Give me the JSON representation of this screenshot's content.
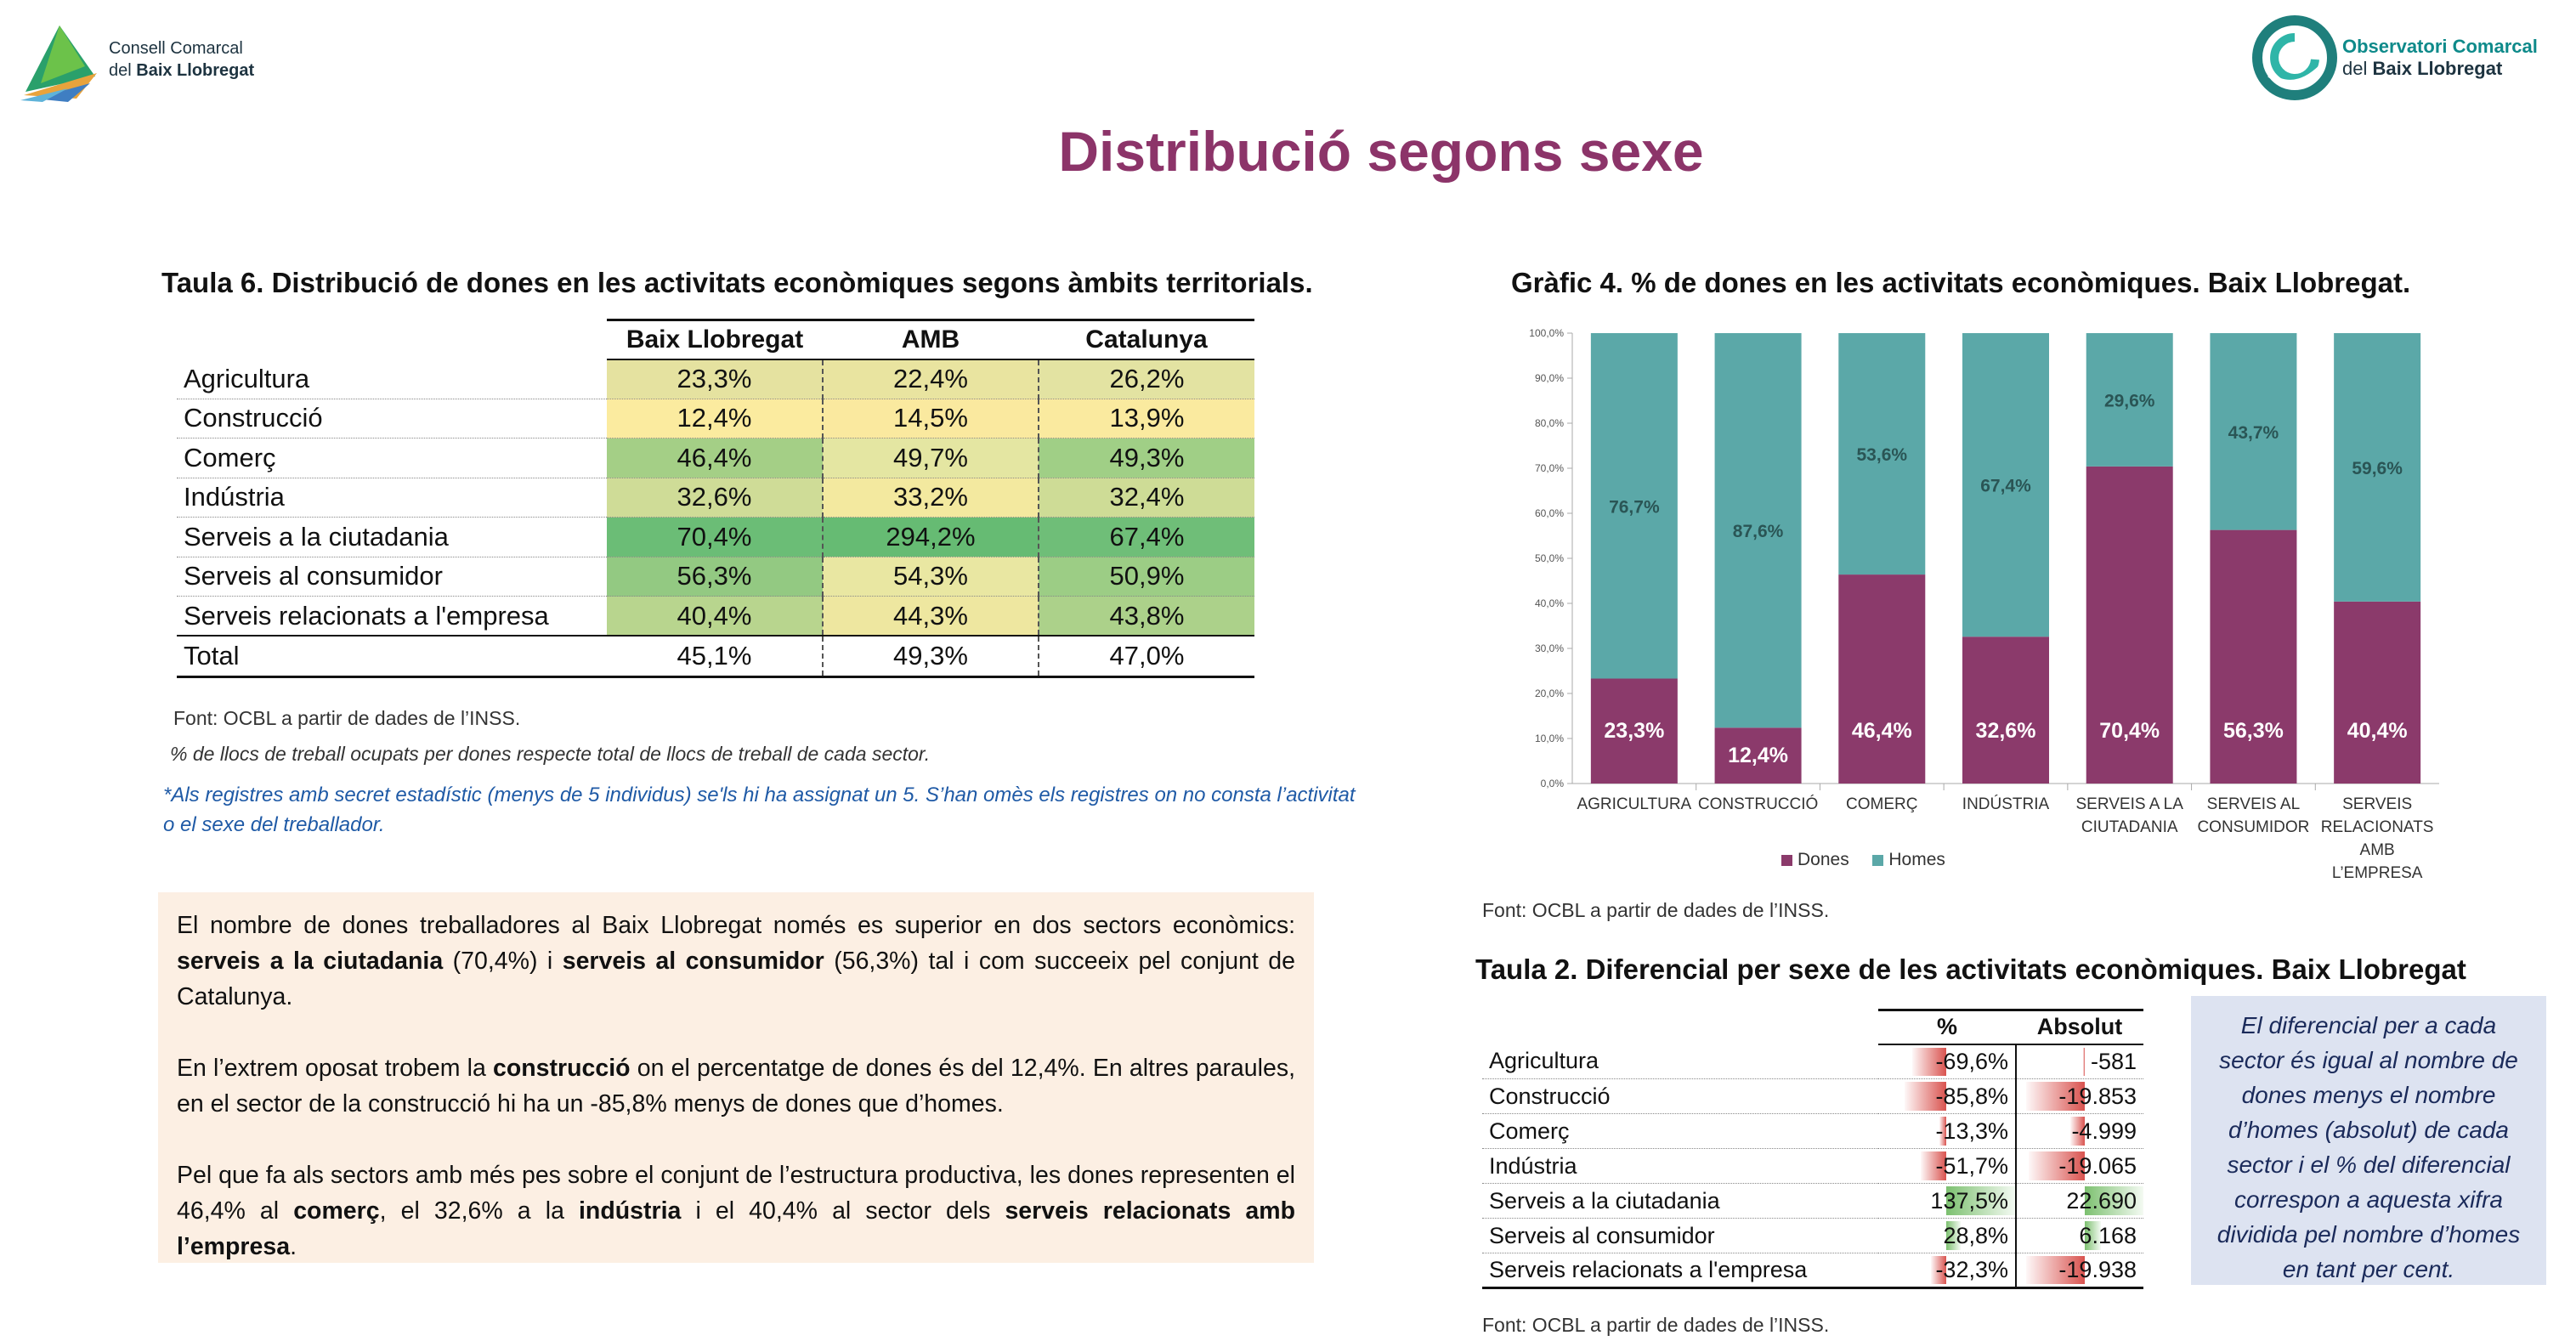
{
  "header": {
    "left_logo": {
      "line1": "Consell Comarcal",
      "line2_prefix": "del ",
      "line2_bold": "Baix Llobregat"
    },
    "right_logo": {
      "line1": "Observatori Comarcal",
      "line2_prefix": "del ",
      "line2_bold": "Baix Llobregat"
    },
    "title": "Distribució segons sexe"
  },
  "table6": {
    "title": "Taula 6. Distribució de dones en les activitats econòmiques segons àmbits territorials.",
    "columns": [
      "Baix Llobregat",
      "AMB",
      "Catalunya"
    ],
    "rows": [
      {
        "label": "Agricultura",
        "values": [
          "23,3%",
          "22,4%",
          "26,2%"
        ],
        "colors": [
          "#e5e2a0",
          "#e9e4a0",
          "#e3e3a2"
        ]
      },
      {
        "label": "Construcció",
        "values": [
          "12,4%",
          "14,5%",
          "13,9%"
        ],
        "colors": [
          "#fbeb9f",
          "#fae99f",
          "#faea9f"
        ]
      },
      {
        "label": "Comerç",
        "values": [
          "46,4%",
          "49,7%",
          "49,3%"
        ],
        "colors": [
          "#a4cf86",
          "#e4e6a2",
          "#a0cf86"
        ]
      },
      {
        "label": "Indústria",
        "values": [
          "32,6%",
          "33,2%",
          "32,4%"
        ],
        "colors": [
          "#cfdc97",
          "#f3e99f",
          "#cedc96"
        ]
      },
      {
        "label": "Serveis a la ciutadania",
        "values": [
          "70,4%",
          "294,2%",
          "67,4%"
        ],
        "colors": [
          "#6bbd76",
          "#66bb73",
          "#6fbe78"
        ]
      },
      {
        "label": "Serveis al consumidor",
        "values": [
          "56,3%",
          "54,3%",
          "50,9%"
        ],
        "colors": [
          "#93c982",
          "#e9e7a2",
          "#9ccd85"
        ]
      },
      {
        "label": "Serveis relacionats a l'empresa",
        "values": [
          "40,4%",
          "44,3%",
          "43,8%"
        ],
        "colors": [
          "#b8d58e",
          "#eee7a0",
          "#acd18a"
        ]
      }
    ],
    "total": {
      "label": "Total",
      "values": [
        "45,1%",
        "49,3%",
        "47,0%"
      ]
    },
    "source": "Font: OCBL a partir de dades de l’INSS.",
    "note": "% de llocs de treball ocupats per  dones respecte total de llocs de treball de cada sector.",
    "footnote": "*Als registres amb secret estadístic (menys de 5 individus) se'ls hi ha assignat un 5. S’han omès els registres on no consta l’activitat o el sexe del treballador."
  },
  "text_box": {
    "p1": {
      "a": "El nombre de dones treballadores al Baix Llobregat només es superior en dos sectors econòmics: ",
      "b1": "serveis a la ciutadania",
      "c": " (70,4%) i ",
      "b2": "serveis al consumidor",
      "d": " (56,3%) tal i com succeeix pel conjunt de Catalunya."
    },
    "p2": {
      "a": "En l’extrem oposat trobem la ",
      "b1": "construcció",
      "c": " on el percentatge de dones és del 12,4%. En altres paraules, en el sector de la construcció hi ha un -85,8% menys de dones que d’homes."
    },
    "p3": {
      "a": "Pel que fa als sectors amb més pes sobre el conjunt de l’estructura productiva, les dones representen el 46,4% al ",
      "b1": "comerç",
      "c": ", el 32,6% a la ",
      "b2": "indústria",
      "d": " i el 40,4% al sector dels ",
      "b3": "serveis relacionats amb l’empresa",
      "e": "."
    }
  },
  "chart4": {
    "title": "Gràfic 4. % de dones en les activitats econòmiques. Baix Llobregat.",
    "source": "Font: OCBL a partir de dades de l’INSS.",
    "legend": [
      "Dones",
      "Homes"
    ]
  },
  "chart_data": {
    "type": "bar",
    "stacked": true,
    "categories": [
      [
        "AGRICULTURA"
      ],
      [
        "CONSTRUCCIÓ"
      ],
      [
        "COMERÇ"
      ],
      [
        "INDÚSTRIA"
      ],
      [
        "SERVEIS A LA",
        "CIUTADANIA"
      ],
      [
        "SERVEIS AL",
        "CONSUMIDOR"
      ],
      [
        "SERVEIS",
        "RELACIONATS",
        "AMB",
        "L’EMPRESA"
      ]
    ],
    "series": [
      {
        "name": "Dones",
        "color": "#8b3a6b",
        "values": [
          23.3,
          12.4,
          46.4,
          32.6,
          70.4,
          56.3,
          40.4
        ],
        "labels": [
          "23,3%",
          "12,4%",
          "46,4%",
          "32,6%",
          "70,4%",
          "56,3%",
          "40,4%"
        ]
      },
      {
        "name": "Homes",
        "color": "#5ba8a8",
        "values": [
          76.7,
          87.6,
          53.6,
          67.4,
          29.6,
          43.7,
          59.6
        ],
        "labels": [
          "76,7%",
          "87,6%",
          "53,6%",
          "67,4%",
          "29,6%",
          "43,7%",
          "59,6%"
        ]
      }
    ],
    "yticks": [
      "0,0%",
      "10,0%",
      "20,0%",
      "30,0%",
      "40,0%",
      "50,0%",
      "60,0%",
      "70,0%",
      "80,0%",
      "90,0%",
      "100,0%"
    ],
    "ylim": [
      0,
      100
    ],
    "legend_position": "bottom"
  },
  "table2": {
    "title": "Taula 2. Diferencial per sexe de les activitats econòmiques. Baix Llobregat",
    "columns": [
      "%",
      "Absolut"
    ],
    "rows": [
      {
        "label": "Agricultura",
        "pct": "-69,6%",
        "abs": "-581",
        "pct_v": -69.6,
        "abs_v": -581
      },
      {
        "label": "Construcció",
        "pct": "-85,8%",
        "abs": "-19.853",
        "pct_v": -85.8,
        "abs_v": -19853
      },
      {
        "label": "Comerç",
        "pct": "-13,3%",
        "abs": "-4.999",
        "pct_v": -13.3,
        "abs_v": -4999
      },
      {
        "label": "Indústria",
        "pct": "-51,7%",
        "abs": "-19.065",
        "pct_v": -51.7,
        "abs_v": -19065
      },
      {
        "label": "Serveis a la ciutadania",
        "pct": "137,5%",
        "abs": "22.690",
        "pct_v": 137.5,
        "abs_v": 22690
      },
      {
        "label": "Serveis al consumidor",
        "pct": "28,8%",
        "abs": "6.168",
        "pct_v": 28.8,
        "abs_v": 6168
      },
      {
        "label": "Serveis relacionats a l'empresa",
        "pct": "-32,3%",
        "abs": "-19.938",
        "pct_v": -32.3,
        "abs_v": -19938
      }
    ],
    "source": "Font: OCBL a partir de dades de l’INSS."
  },
  "info_box": "El diferencial per a cada sector és igual al nombre de dones menys el nombre d’homes (absolut) de cada sector i el % del diferencial correspon a aquesta xifra dividida pel nombre d’homes en tant per cent."
}
